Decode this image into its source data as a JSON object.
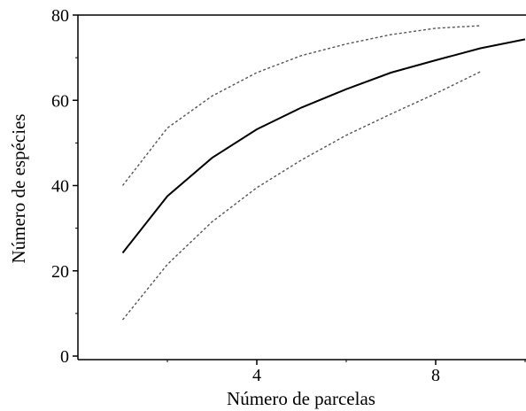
{
  "chart_data": {
    "type": "line",
    "xlabel": "Número de parcelas",
    "ylabel": "Número de espécies",
    "xlim": [
      0,
      10
    ],
    "ylim": [
      0,
      80
    ],
    "x_ticks": [
      {
        "value": 4,
        "label": "4"
      },
      {
        "value": 8,
        "label": "8"
      }
    ],
    "y_ticks": [
      {
        "value": 0,
        "label": "0"
      },
      {
        "value": 20,
        "label": "20"
      },
      {
        "value": 40,
        "label": "40"
      },
      {
        "value": 60,
        "label": "60"
      },
      {
        "value": 80,
        "label": "80"
      }
    ],
    "grid": false,
    "series": [
      {
        "style": "solid",
        "color": "#000000",
        "x": [
          1,
          2,
          3,
          4,
          5,
          6,
          7,
          8,
          9,
          10
        ],
        "y": [
          24.2,
          37.5,
          46.5,
          53.2,
          58.3,
          62.6,
          66.5,
          69.4,
          72.2,
          74.3
        ]
      },
      {
        "style": "dotted",
        "color": "#555555",
        "x": [
          1,
          2,
          3,
          4,
          5,
          6,
          7,
          8,
          9
        ],
        "y": [
          40.0,
          53.5,
          61.0,
          66.5,
          70.5,
          73.2,
          75.4,
          76.9,
          77.5
        ]
      },
      {
        "style": "dotted",
        "color": "#555555",
        "x": [
          1,
          2,
          3,
          4,
          5,
          6,
          7,
          8,
          9
        ],
        "y": [
          8.5,
          21.5,
          31.5,
          39.5,
          46.0,
          51.8,
          56.8,
          61.6,
          66.7
        ]
      }
    ]
  }
}
